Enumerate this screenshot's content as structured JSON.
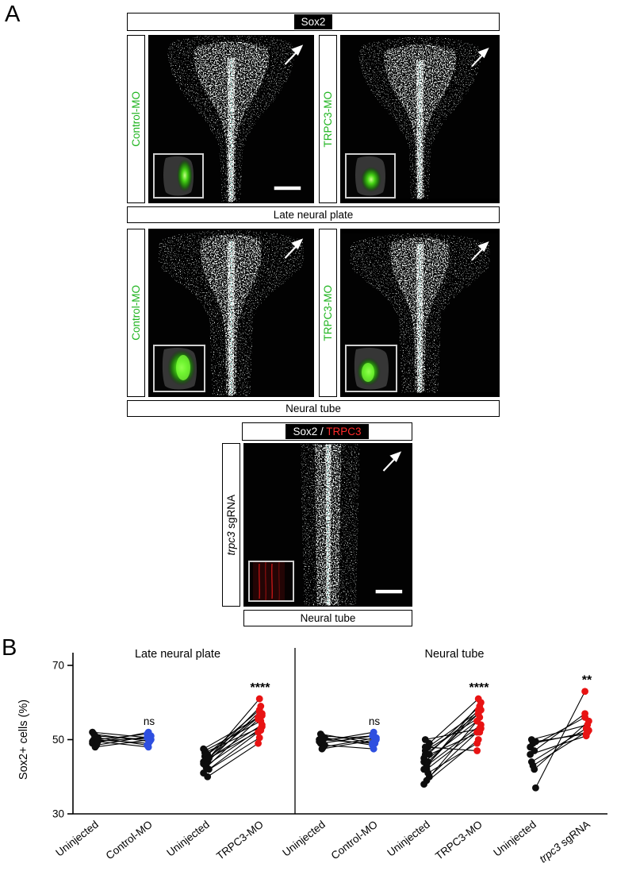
{
  "colors": {
    "label_green": "#1fb41f",
    "trpc3_red": "#ff2a2a",
    "dot_blue": "#2e4fe0",
    "dot_red": "#e81313",
    "dot_black": "#0d0d0d",
    "midline_cyan": "#9adfd6"
  },
  "panelA": {
    "label": "A",
    "stain_header": "Sox2",
    "rows": [
      {
        "left_label": "Control-MO",
        "right_label": "TRPC3-MO",
        "caption": "Late neural plate"
      },
      {
        "left_label": "Control-MO",
        "right_label": "TRPC3-MO",
        "caption": "Neural tube"
      }
    ],
    "dual_header": {
      "stain1": "Sox2",
      "separator": " / ",
      "stain2": "TRPC3"
    },
    "sgrna": {
      "label_gene": "trpc3",
      "label_rest": " sgRNA",
      "caption": "Neural tube"
    }
  },
  "panelB": {
    "label": "B"
  },
  "chart_data": {
    "type": "paired-scatter",
    "title": "",
    "ylabel": "Sox2+ cells (%)",
    "ylim": [
      30,
      70
    ],
    "yticks": [
      30,
      50,
      70
    ],
    "grid": false,
    "pre_color": "#0d0d0d",
    "sections": [
      {
        "title": "Late neural plate",
        "groups": [
          {
            "labels": [
              "Uninjected",
              "Control-MO"
            ],
            "color": "#2e4fe0",
            "sig": "ns",
            "pairs": [
              [
                49.5,
                50.5
              ],
              [
                50,
                49
              ],
              [
                51,
                50
              ],
              [
                48.5,
                51
              ],
              [
                50.5,
                48.5
              ],
              [
                49,
                52
              ],
              [
                51.5,
                49.5
              ],
              [
                48,
                50
              ],
              [
                50,
                51.5
              ],
              [
                49.5,
                48
              ],
              [
                52,
                50.5
              ]
            ]
          },
          {
            "labels": [
              "Uninjected",
              "TRPC3-MO"
            ],
            "color": "#e81313",
            "sig": "****",
            "pairs": [
              [
                44,
                56
              ],
              [
                45.5,
                58
              ],
              [
                43,
                53
              ],
              [
                46,
                57
              ],
              [
                42,
                52
              ],
              [
                41,
                50.5
              ],
              [
                47,
                55
              ],
              [
                44.5,
                54
              ],
              [
                40,
                49
              ],
              [
                45,
                61
              ],
              [
                43.5,
                59
              ],
              [
                46.5,
                53.5
              ],
              [
                42.5,
                55.5
              ],
              [
                44,
                57.5
              ],
              [
                45,
                52.5
              ],
              [
                47.5,
                56.5
              ]
            ]
          }
        ]
      },
      {
        "title": "Neural tube",
        "groups": [
          {
            "labels": [
              "Uninjected",
              "Control-MO"
            ],
            "color": "#2e4fe0",
            "sig": "ns",
            "pairs": [
              [
                50,
                49
              ],
              [
                49,
                51
              ],
              [
                51,
                50
              ],
              [
                48,
                50.5
              ],
              [
                50.5,
                48.5
              ],
              [
                49.5,
                52
              ],
              [
                51.5,
                49
              ],
              [
                47.5,
                50
              ],
              [
                50,
                51
              ],
              [
                48.5,
                47.5
              ]
            ]
          },
          {
            "labels": [
              "Uninjected",
              "TRPC3-MO"
            ],
            "color": "#e81313",
            "sig": "****",
            "pairs": [
              [
                44,
                55
              ],
              [
                46,
                57
              ],
              [
                42,
                53
              ],
              [
                48,
                58
              ],
              [
                40,
                52
              ],
              [
                38,
                50
              ],
              [
                47,
                56
              ],
              [
                43,
                54
              ],
              [
                41,
                49
              ],
              [
                49,
                61
              ],
              [
                45,
                59
              ],
              [
                50,
                53
              ],
              [
                39,
                55
              ],
              [
                44,
                57
              ],
              [
                46,
                52
              ],
              [
                42,
                60
              ],
              [
                48,
                47
              ],
              [
                43,
                58
              ]
            ]
          },
          {
            "labels": [
              "Uninjected",
              "trpc3 sgRNA"
            ],
            "color": "#e81313",
            "sig": "**",
            "italic_label": true,
            "pairs": [
              [
                48,
                56
              ],
              [
                44,
                53
              ],
              [
                49,
                52
              ],
              [
                42,
                55
              ],
              [
                37,
                63
              ],
              [
                46,
                51
              ],
              [
                50,
                54
              ],
              [
                43,
                52.5
              ],
              [
                47,
                57
              ],
              [
                49.5,
                51.5
              ]
            ]
          }
        ]
      }
    ]
  }
}
